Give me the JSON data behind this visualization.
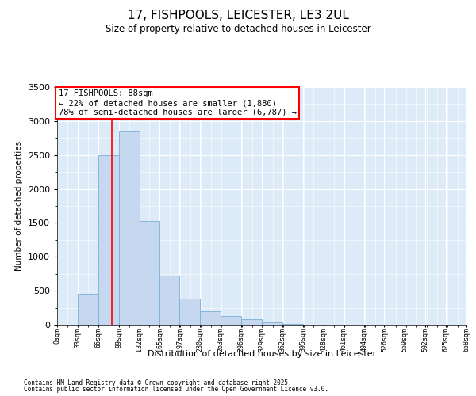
{
  "title": "17, FISHPOOLS, LEICESTER, LE3 2UL",
  "subtitle": "Size of property relative to detached houses in Leicester",
  "xlabel": "Distribution of detached houses by size in Leicester",
  "ylabel": "Number of detached properties",
  "bar_color": "#c5d8f0",
  "bar_edge_color": "#7aafd4",
  "background_color": "#ddeaf8",
  "grid_color": "#ffffff",
  "redline_x": 88,
  "annotation_title": "17 FISHPOOLS: 88sqm",
  "annotation_line1": "← 22% of detached houses are smaller (1,880)",
  "annotation_line2": "78% of semi-detached houses are larger (6,787) →",
  "footnote1": "Contains HM Land Registry data © Crown copyright and database right 2025.",
  "footnote2": "Contains public sector information licensed under the Open Government Licence v3.0.",
  "bin_edges": [
    0,
    33,
    66,
    99,
    132,
    165,
    197,
    230,
    263,
    296,
    329,
    362,
    395,
    428,
    461,
    494,
    526,
    559,
    592,
    625,
    658
  ],
  "bin_labels": [
    "0sqm",
    "33sqm",
    "66sqm",
    "99sqm",
    "132sqm",
    "165sqm",
    "197sqm",
    "230sqm",
    "263sqm",
    "296sqm",
    "329sqm",
    "362sqm",
    "395sqm",
    "428sqm",
    "461sqm",
    "494sqm",
    "526sqm",
    "559sqm",
    "592sqm",
    "625sqm",
    "658sqm"
  ],
  "bar_heights": [
    5,
    450,
    2500,
    2850,
    1530,
    720,
    380,
    200,
    130,
    80,
    30,
    10,
    5,
    5,
    2,
    2,
    1,
    1,
    0,
    0
  ],
  "ylim": [
    0,
    3500
  ],
  "yticks": [
    0,
    500,
    1000,
    1500,
    2000,
    2500,
    3000,
    3500
  ]
}
